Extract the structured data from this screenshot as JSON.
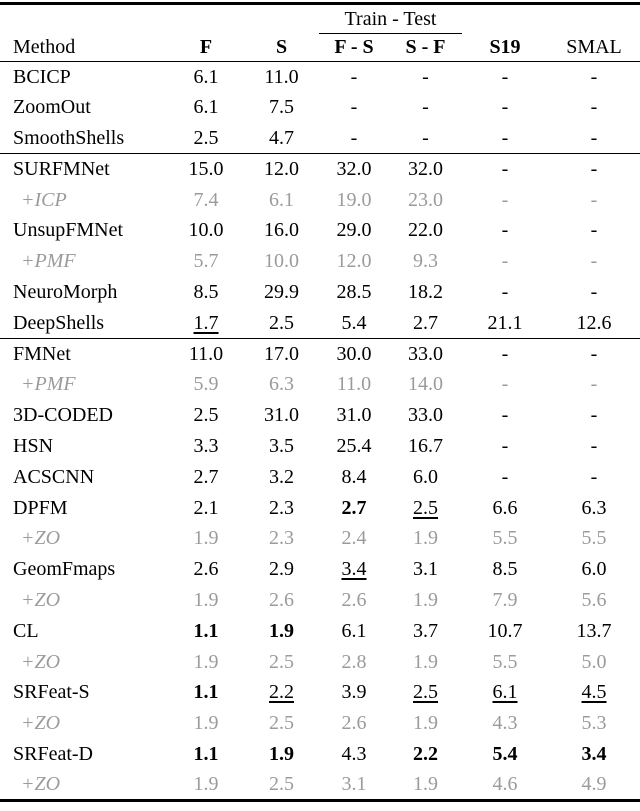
{
  "page": {
    "background_color": "#ffffff",
    "text_color": "#000000",
    "gray_row_color": "#9b9b9b"
  },
  "table": {
    "group_header": "Train - Test",
    "columns": [
      "Method",
      "F",
      "S",
      "F - S",
      "S - F",
      "S19",
      "SMAL"
    ],
    "bold_columns": [
      false,
      true,
      true,
      true,
      true,
      true,
      false
    ],
    "rows": [
      {
        "method": "BCICP",
        "variant": "normal",
        "section_start": false,
        "cells": [
          [
            "6.1",
            ""
          ],
          [
            "11.0",
            ""
          ],
          [
            "-",
            ""
          ],
          [
            "-",
            ""
          ],
          [
            "-",
            ""
          ],
          [
            "-",
            ""
          ]
        ]
      },
      {
        "method": "ZoomOut",
        "variant": "normal",
        "section_start": false,
        "cells": [
          [
            "6.1",
            ""
          ],
          [
            "7.5",
            ""
          ],
          [
            "-",
            ""
          ],
          [
            "-",
            ""
          ],
          [
            "-",
            ""
          ],
          [
            "-",
            ""
          ]
        ]
      },
      {
        "method": "SmoothShells",
        "variant": "normal",
        "section_start": false,
        "cells": [
          [
            "2.5",
            ""
          ],
          [
            "4.7",
            ""
          ],
          [
            "-",
            ""
          ],
          [
            "-",
            ""
          ],
          [
            "-",
            ""
          ],
          [
            "-",
            ""
          ]
        ]
      },
      {
        "method": "SURFMNet",
        "variant": "normal",
        "section_start": true,
        "cells": [
          [
            "15.0",
            ""
          ],
          [
            "12.0",
            ""
          ],
          [
            "32.0",
            ""
          ],
          [
            "32.0",
            ""
          ],
          [
            "-",
            ""
          ],
          [
            "-",
            ""
          ]
        ]
      },
      {
        "method": "+ICP",
        "variant": "gray",
        "section_start": false,
        "cells": [
          [
            "7.4",
            ""
          ],
          [
            "6.1",
            ""
          ],
          [
            "19.0",
            ""
          ],
          [
            "23.0",
            ""
          ],
          [
            "-",
            ""
          ],
          [
            "-",
            ""
          ]
        ]
      },
      {
        "method": "UnsupFMNet",
        "variant": "normal",
        "section_start": false,
        "cells": [
          [
            "10.0",
            ""
          ],
          [
            "16.0",
            ""
          ],
          [
            "29.0",
            ""
          ],
          [
            "22.0",
            ""
          ],
          [
            "-",
            ""
          ],
          [
            "-",
            ""
          ]
        ]
      },
      {
        "method": "+PMF",
        "variant": "gray",
        "section_start": false,
        "cells": [
          [
            "5.7",
            ""
          ],
          [
            "10.0",
            ""
          ],
          [
            "12.0",
            ""
          ],
          [
            "9.3",
            ""
          ],
          [
            "-",
            ""
          ],
          [
            "-",
            ""
          ]
        ]
      },
      {
        "method": "NeuroMorph",
        "variant": "normal",
        "section_start": false,
        "cells": [
          [
            "8.5",
            ""
          ],
          [
            "29.9",
            ""
          ],
          [
            "28.5",
            ""
          ],
          [
            "18.2",
            ""
          ],
          [
            "-",
            ""
          ],
          [
            "-",
            ""
          ]
        ]
      },
      {
        "method": "DeepShells",
        "variant": "normal",
        "section_start": false,
        "cells": [
          [
            "1.7",
            "u"
          ],
          [
            "2.5",
            ""
          ],
          [
            "5.4",
            ""
          ],
          [
            "2.7",
            ""
          ],
          [
            "21.1",
            ""
          ],
          [
            "12.6",
            ""
          ]
        ]
      },
      {
        "method": "FMNet",
        "variant": "normal",
        "section_start": true,
        "cells": [
          [
            "11.0",
            ""
          ],
          [
            "17.0",
            ""
          ],
          [
            "30.0",
            ""
          ],
          [
            "33.0",
            ""
          ],
          [
            "-",
            ""
          ],
          [
            "-",
            ""
          ]
        ]
      },
      {
        "method": "+PMF",
        "variant": "gray",
        "section_start": false,
        "cells": [
          [
            "5.9",
            ""
          ],
          [
            "6.3",
            ""
          ],
          [
            "11.0",
            ""
          ],
          [
            "14.0",
            ""
          ],
          [
            "-",
            ""
          ],
          [
            "-",
            ""
          ]
        ]
      },
      {
        "method": "3D-CODED",
        "variant": "normal",
        "section_start": false,
        "cells": [
          [
            "2.5",
            ""
          ],
          [
            "31.0",
            ""
          ],
          [
            "31.0",
            ""
          ],
          [
            "33.0",
            ""
          ],
          [
            "-",
            ""
          ],
          [
            "-",
            ""
          ]
        ]
      },
      {
        "method": "HSN",
        "variant": "normal",
        "section_start": false,
        "cells": [
          [
            "3.3",
            ""
          ],
          [
            "3.5",
            ""
          ],
          [
            "25.4",
            ""
          ],
          [
            "16.7",
            ""
          ],
          [
            "-",
            ""
          ],
          [
            "-",
            ""
          ]
        ]
      },
      {
        "method": "ACSCNN",
        "variant": "normal",
        "section_start": false,
        "cells": [
          [
            "2.7",
            ""
          ],
          [
            "3.2",
            ""
          ],
          [
            "8.4",
            ""
          ],
          [
            "6.0",
            ""
          ],
          [
            "-",
            ""
          ],
          [
            "-",
            ""
          ]
        ]
      },
      {
        "method": "DPFM",
        "variant": "normal",
        "section_start": false,
        "cells": [
          [
            "2.1",
            ""
          ],
          [
            "2.3",
            ""
          ],
          [
            "2.7",
            "b"
          ],
          [
            "2.5",
            "u"
          ],
          [
            "6.6",
            ""
          ],
          [
            "6.3",
            ""
          ]
        ]
      },
      {
        "method": "+ZO",
        "variant": "gray",
        "section_start": false,
        "cells": [
          [
            "1.9",
            ""
          ],
          [
            "2.3",
            ""
          ],
          [
            "2.4",
            ""
          ],
          [
            "1.9",
            ""
          ],
          [
            "5.5",
            ""
          ],
          [
            "5.5",
            ""
          ]
        ]
      },
      {
        "method": "GeomFmaps",
        "variant": "normal",
        "section_start": false,
        "cells": [
          [
            "2.6",
            ""
          ],
          [
            "2.9",
            ""
          ],
          [
            "3.4",
            "u"
          ],
          [
            "3.1",
            ""
          ],
          [
            "8.5",
            ""
          ],
          [
            "6.0",
            ""
          ]
        ]
      },
      {
        "method": "+ZO",
        "variant": "gray",
        "section_start": false,
        "cells": [
          [
            "1.9",
            ""
          ],
          [
            "2.6",
            ""
          ],
          [
            "2.6",
            ""
          ],
          [
            "1.9",
            ""
          ],
          [
            "7.9",
            ""
          ],
          [
            "5.6",
            ""
          ]
        ]
      },
      {
        "method": "CL",
        "variant": "normal",
        "section_start": false,
        "cells": [
          [
            "1.1",
            "b"
          ],
          [
            "1.9",
            "b"
          ],
          [
            "6.1",
            ""
          ],
          [
            "3.7",
            ""
          ],
          [
            "10.7",
            ""
          ],
          [
            "13.7",
            ""
          ]
        ]
      },
      {
        "method": "+ZO",
        "variant": "gray",
        "section_start": false,
        "cells": [
          [
            "1.9",
            ""
          ],
          [
            "2.5",
            ""
          ],
          [
            "2.8",
            ""
          ],
          [
            "1.9",
            ""
          ],
          [
            "5.5",
            ""
          ],
          [
            "5.0",
            ""
          ]
        ]
      },
      {
        "method": "SRFeat-S",
        "variant": "normal",
        "section_start": false,
        "cells": [
          [
            "1.1",
            "b"
          ],
          [
            "2.2",
            "u"
          ],
          [
            "3.9",
            ""
          ],
          [
            "2.5",
            "u"
          ],
          [
            "6.1",
            "u"
          ],
          [
            "4.5",
            "u"
          ]
        ]
      },
      {
        "method": "+ZO",
        "variant": "gray",
        "section_start": false,
        "cells": [
          [
            "1.9",
            ""
          ],
          [
            "2.5",
            ""
          ],
          [
            "2.6",
            ""
          ],
          [
            "1.9",
            ""
          ],
          [
            "4.3",
            ""
          ],
          [
            "5.3",
            ""
          ]
        ]
      },
      {
        "method": "SRFeat-D",
        "variant": "normal",
        "section_start": false,
        "cells": [
          [
            "1.1",
            "b"
          ],
          [
            "1.9",
            "b"
          ],
          [
            "4.3",
            ""
          ],
          [
            "2.2",
            "b"
          ],
          [
            "5.4",
            "b"
          ],
          [
            "3.4",
            "b"
          ]
        ]
      },
      {
        "method": "+ZO",
        "variant": "gray",
        "section_start": false,
        "cells": [
          [
            "1.9",
            ""
          ],
          [
            "2.5",
            ""
          ],
          [
            "3.1",
            ""
          ],
          [
            "1.9",
            ""
          ],
          [
            "4.6",
            ""
          ],
          [
            "4.9",
            ""
          ]
        ]
      }
    ]
  },
  "chart_data": {
    "type": "table",
    "title": "Train - Test",
    "columns": [
      "Method",
      "F",
      "S",
      "F - S",
      "S - F",
      "S19",
      "SMAL"
    ],
    "rows": [
      [
        "BCICP",
        "6.1",
        "11.0",
        "-",
        "-",
        "-",
        "-"
      ],
      [
        "ZoomOut",
        "6.1",
        "7.5",
        "-",
        "-",
        "-",
        "-"
      ],
      [
        "SmoothShells",
        "2.5",
        "4.7",
        "-",
        "-",
        "-",
        "-"
      ],
      [
        "SURFMNet",
        "15.0",
        "12.0",
        "32.0",
        "32.0",
        "-",
        "-"
      ],
      [
        "+ICP",
        "7.4",
        "6.1",
        "19.0",
        "23.0",
        "-",
        "-"
      ],
      [
        "UnsupFMNet",
        "10.0",
        "16.0",
        "29.0",
        "22.0",
        "-",
        "-"
      ],
      [
        "+PMF",
        "5.7",
        "10.0",
        "12.0",
        "9.3",
        "-",
        "-"
      ],
      [
        "NeuroMorph",
        "8.5",
        "29.9",
        "28.5",
        "18.2",
        "-",
        "-"
      ],
      [
        "DeepShells",
        "1.7",
        "2.5",
        "5.4",
        "2.7",
        "21.1",
        "12.6"
      ],
      [
        "FMNet",
        "11.0",
        "17.0",
        "30.0",
        "33.0",
        "-",
        "-"
      ],
      [
        "+PMF",
        "5.9",
        "6.3",
        "11.0",
        "14.0",
        "-",
        "-"
      ],
      [
        "3D-CODED",
        "2.5",
        "31.0",
        "31.0",
        "33.0",
        "-",
        "-"
      ],
      [
        "HSN",
        "3.3",
        "3.5",
        "25.4",
        "16.7",
        "-",
        "-"
      ],
      [
        "ACSCNN",
        "2.7",
        "3.2",
        "8.4",
        "6.0",
        "-",
        "-"
      ],
      [
        "DPFM",
        "2.1",
        "2.3",
        "2.7",
        "2.5",
        "6.6",
        "6.3"
      ],
      [
        "+ZO",
        "1.9",
        "2.3",
        "2.4",
        "1.9",
        "5.5",
        "5.5"
      ],
      [
        "GeomFmaps",
        "2.6",
        "2.9",
        "3.4",
        "3.1",
        "8.5",
        "6.0"
      ],
      [
        "+ZO",
        "1.9",
        "2.6",
        "2.6",
        "1.9",
        "7.9",
        "5.6"
      ],
      [
        "CL",
        "1.1",
        "1.9",
        "6.1",
        "3.7",
        "10.7",
        "13.7"
      ],
      [
        "+ZO",
        "1.9",
        "2.5",
        "2.8",
        "1.9",
        "5.5",
        "5.0"
      ],
      [
        "SRFeat-S",
        "1.1",
        "2.2",
        "3.9",
        "2.5",
        "6.1",
        "4.5"
      ],
      [
        "+ZO",
        "1.9",
        "2.5",
        "2.6",
        "1.9",
        "4.3",
        "5.3"
      ],
      [
        "SRFeat-D",
        "1.1",
        "1.9",
        "4.3",
        "2.2",
        "5.4",
        "3.4"
      ],
      [
        "+ZO",
        "1.9",
        "2.5",
        "3.1",
        "1.9",
        "4.6",
        "4.9"
      ]
    ]
  }
}
